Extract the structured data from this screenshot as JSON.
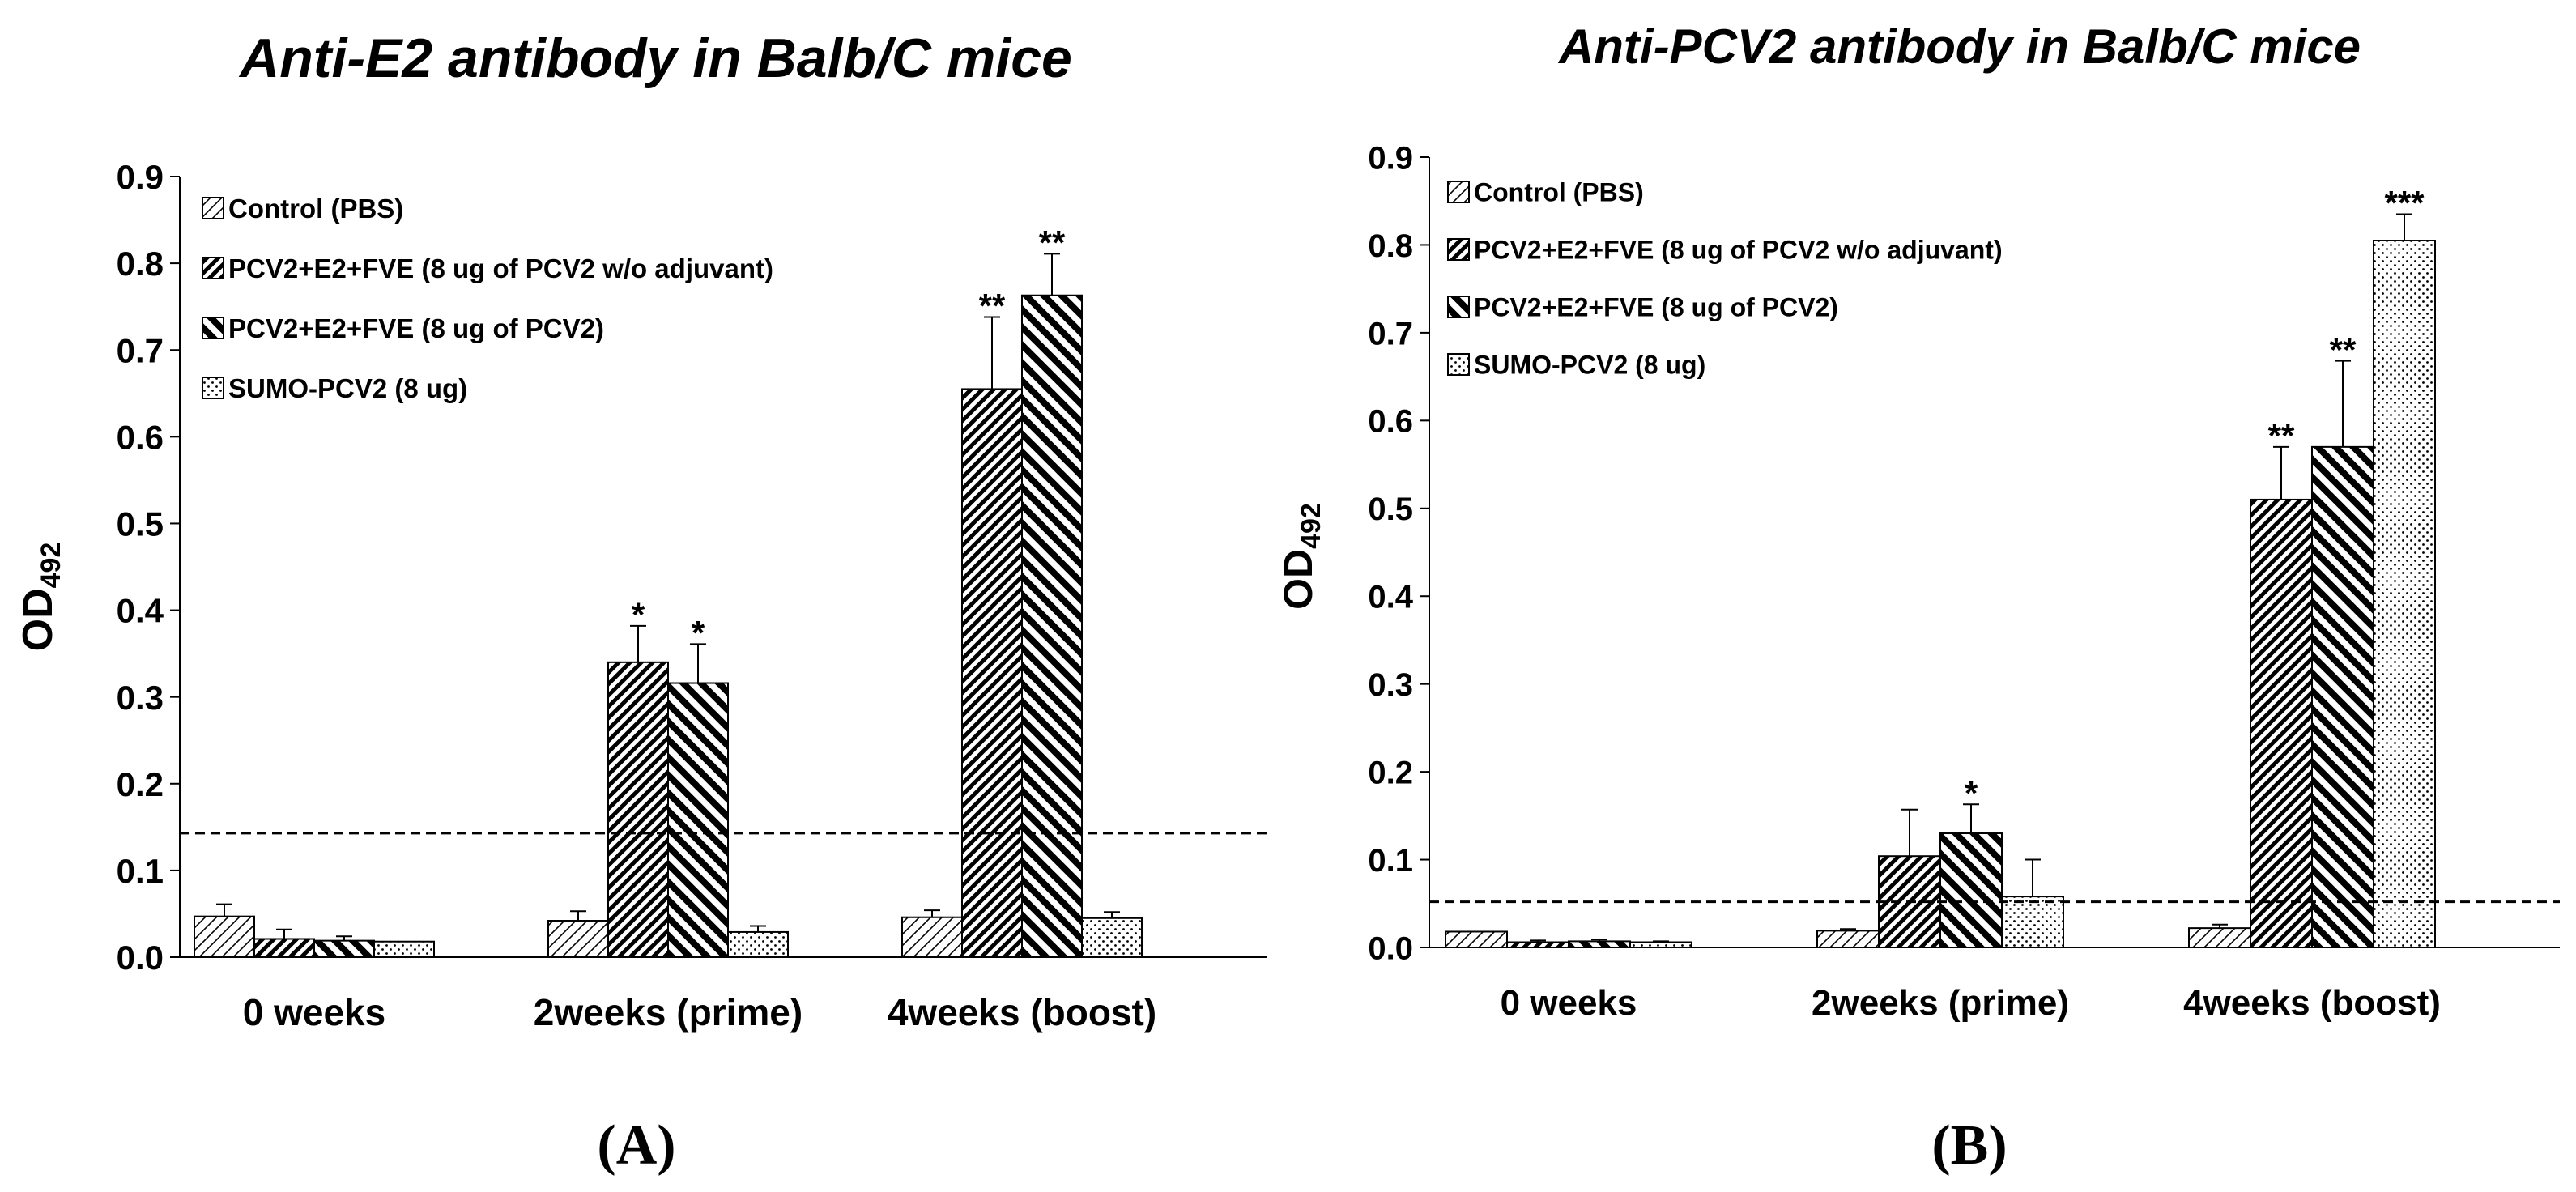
{
  "chart_data": [
    {
      "type": "bar",
      "title": "Anti-E2 antibody in Balb/C mice",
      "panel_label": "(A)",
      "ylabel_main": "OD",
      "ylabel_sub": "492",
      "xlabel": "",
      "ylim": [
        0,
        0.9
      ],
      "yticks": [
        "0.0",
        "0.1",
        "0.2",
        "0.3",
        "0.4",
        "0.5",
        "0.6",
        "0.7",
        "0.8",
        "0.9"
      ],
      "categories": [
        "0 weeks",
        "2weeks (prime)",
        "4weeks (boost)"
      ],
      "cutoff": 0.143,
      "series": [
        {
          "name": "Control (PBS)",
          "pattern": "diag-light",
          "values": [
            0.047,
            0.042,
            0.046
          ],
          "errors": [
            0.014,
            0.011,
            0.008
          ],
          "sig": [
            "",
            "",
            ""
          ]
        },
        {
          "name": "PCV2+E2+FVE (8 ug of PCV2 w/o adjuvant)",
          "pattern": "diag-up",
          "values": [
            0.021,
            0.34,
            0.655
          ],
          "errors": [
            0.011,
            0.042,
            0.083
          ],
          "sig": [
            "",
            "*",
            "**"
          ]
        },
        {
          "name": "PCV2+E2+FVE (8 ug of PCV2)",
          "pattern": "diag-down",
          "values": [
            0.019,
            0.316,
            0.763
          ],
          "errors": [
            0.005,
            0.045,
            0.048
          ],
          "sig": [
            "",
            "*",
            "**"
          ]
        },
        {
          "name": "SUMO-PCV2 (8 ug)",
          "pattern": "dots",
          "values": [
            0.018,
            0.029,
            0.045
          ],
          "errors": [
            0.0,
            0.007,
            0.007
          ],
          "sig": [
            "",
            "",
            ""
          ]
        }
      ]
    },
    {
      "type": "bar",
      "title": "Anti-PCV2 antibody in Balb/C mice",
      "panel_label": "(B)",
      "ylabel_main": "OD",
      "ylabel_sub": "492",
      "xlabel": "",
      "ylim": [
        0,
        0.9
      ],
      "yticks": [
        "0.0",
        "0.1",
        "0.2",
        "0.3",
        "0.4",
        "0.5",
        "0.6",
        "0.7",
        "0.8",
        "0.9"
      ],
      "categories": [
        "0 weeks",
        "2weeks (prime)",
        "4weeks (boost)"
      ],
      "cutoff": 0.052,
      "series": [
        {
          "name": "Control (PBS)",
          "pattern": "diag-light",
          "values": [
            0.018,
            0.019,
            0.022
          ],
          "errors": [
            0.0,
            0.002,
            0.004
          ],
          "sig": [
            "",
            "",
            ""
          ]
        },
        {
          "name": "PCV2+E2+FVE (8 ug of PCV2 w/o adjuvant)",
          "pattern": "diag-up",
          "values": [
            0.006,
            0.104,
            0.51
          ],
          "errors": [
            0.002,
            0.053,
            0.06
          ],
          "sig": [
            "",
            "",
            "**"
          ]
        },
        {
          "name": "PCV2+E2+FVE (8 ug of PCV2)",
          "pattern": "diag-down",
          "values": [
            0.007,
            0.13,
            0.57
          ],
          "errors": [
            0.002,
            0.033,
            0.098
          ],
          "sig": [
            "",
            "*",
            "**"
          ]
        },
        {
          "name": "SUMO-PCV2 (8 ug)",
          "pattern": "dots",
          "values": [
            0.006,
            0.058,
            0.805
          ],
          "errors": [
            0.001,
            0.042,
            0.03
          ],
          "sig": [
            "",
            "",
            "***"
          ]
        }
      ]
    }
  ]
}
